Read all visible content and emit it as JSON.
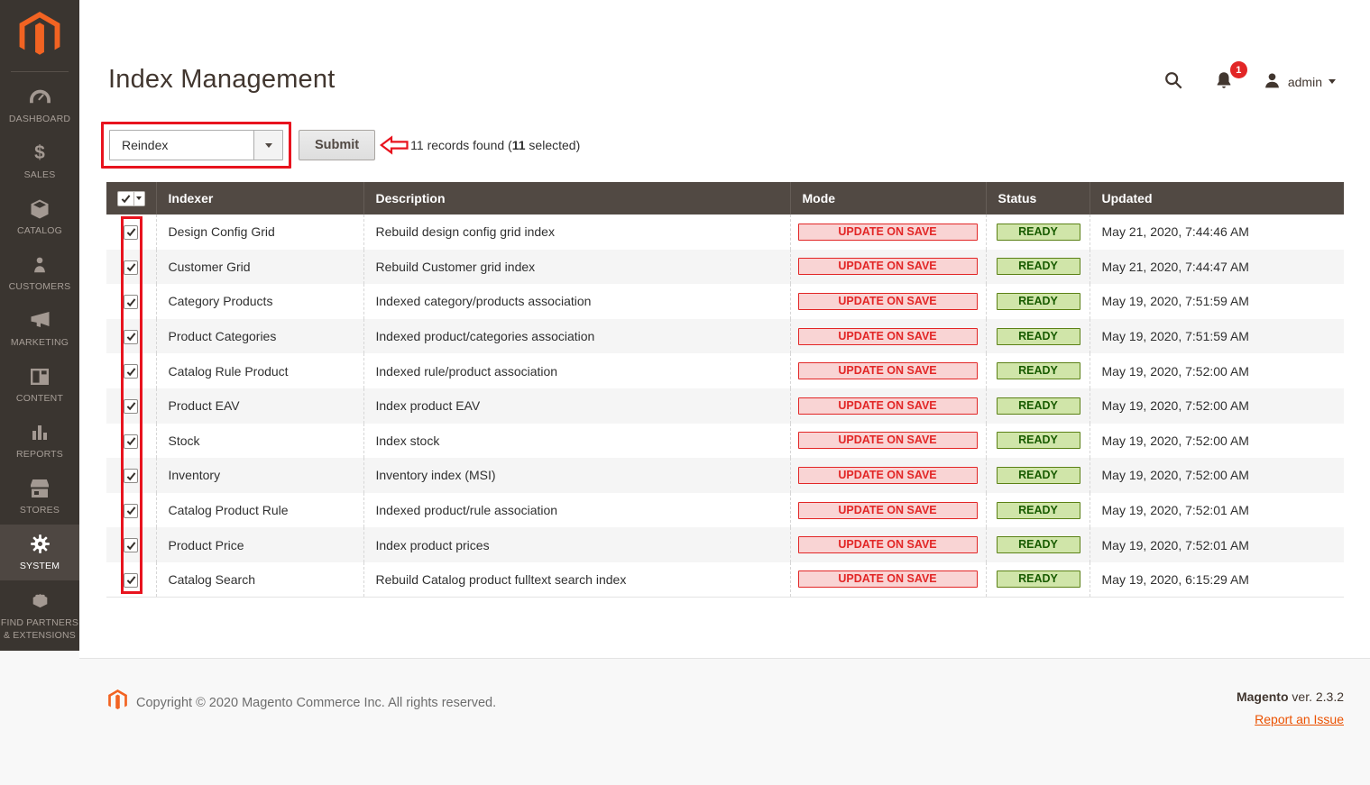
{
  "sidebar": {
    "items": [
      {
        "id": "dashboard",
        "label": "DASHBOARD",
        "icon": "dashboard-icon",
        "active": false
      },
      {
        "id": "sales",
        "label": "SALES",
        "icon": "sales-icon",
        "active": false
      },
      {
        "id": "catalog",
        "label": "CATALOG",
        "icon": "catalog-icon",
        "active": false
      },
      {
        "id": "customers",
        "label": "CUSTOMERS",
        "icon": "customers-icon",
        "active": false
      },
      {
        "id": "marketing",
        "label": "MARKETING",
        "icon": "marketing-icon",
        "active": false
      },
      {
        "id": "content",
        "label": "CONTENT",
        "icon": "content-icon",
        "active": false
      },
      {
        "id": "reports",
        "label": "REPORTS",
        "icon": "reports-icon",
        "active": false
      },
      {
        "id": "stores",
        "label": "STORES",
        "icon": "stores-icon",
        "active": false
      },
      {
        "id": "system",
        "label": "SYSTEM",
        "icon": "system-icon",
        "active": true
      },
      {
        "id": "find-partners",
        "label": "FIND PARTNERS\n& EXTENSIONS",
        "icon": "extensions-icon",
        "active": false
      }
    ]
  },
  "header": {
    "title": "Index Management",
    "username": "admin",
    "notification_count": "1"
  },
  "toolbar": {
    "action_selected": "Reindex",
    "submit_label": "Submit",
    "records_prefix": "11 records found (",
    "records_selected_count": "11",
    "records_suffix": " selected)"
  },
  "table": {
    "columns": {
      "indexer": "Indexer",
      "description": "Description",
      "mode": "Mode",
      "status": "Status",
      "updated": "Updated"
    },
    "rows": [
      {
        "checked": true,
        "indexer": "Design Config Grid",
        "description": "Rebuild design config grid index",
        "mode": "UPDATE ON SAVE",
        "status": "READY",
        "updated": "May 21, 2020, 7:44:46 AM"
      },
      {
        "checked": true,
        "indexer": "Customer Grid",
        "description": "Rebuild Customer grid index",
        "mode": "UPDATE ON SAVE",
        "status": "READY",
        "updated": "May 21, 2020, 7:44:47 AM"
      },
      {
        "checked": true,
        "indexer": "Category Products",
        "description": "Indexed category/products association",
        "mode": "UPDATE ON SAVE",
        "status": "READY",
        "updated": "May 19, 2020, 7:51:59 AM"
      },
      {
        "checked": true,
        "indexer": "Product Categories",
        "description": "Indexed product/categories association",
        "mode": "UPDATE ON SAVE",
        "status": "READY",
        "updated": "May 19, 2020, 7:51:59 AM"
      },
      {
        "checked": true,
        "indexer": "Catalog Rule Product",
        "description": "Indexed rule/product association",
        "mode": "UPDATE ON SAVE",
        "status": "READY",
        "updated": "May 19, 2020, 7:52:00 AM"
      },
      {
        "checked": true,
        "indexer": "Product EAV",
        "description": "Index product EAV",
        "mode": "UPDATE ON SAVE",
        "status": "READY",
        "updated": "May 19, 2020, 7:52:00 AM"
      },
      {
        "checked": true,
        "indexer": "Stock",
        "description": "Index stock",
        "mode": "UPDATE ON SAVE",
        "status": "READY",
        "updated": "May 19, 2020, 7:52:00 AM"
      },
      {
        "checked": true,
        "indexer": "Inventory",
        "description": "Inventory index (MSI)",
        "mode": "UPDATE ON SAVE",
        "status": "READY",
        "updated": "May 19, 2020, 7:52:00 AM"
      },
      {
        "checked": true,
        "indexer": "Catalog Product Rule",
        "description": "Indexed product/rule association",
        "mode": "UPDATE ON SAVE",
        "status": "READY",
        "updated": "May 19, 2020, 7:52:01 AM"
      },
      {
        "checked": true,
        "indexer": "Product Price",
        "description": "Index product prices",
        "mode": "UPDATE ON SAVE",
        "status": "READY",
        "updated": "May 19, 2020, 7:52:01 AM"
      },
      {
        "checked": true,
        "indexer": "Catalog Search",
        "description": "Rebuild Catalog product fulltext search index",
        "mode": "UPDATE ON SAVE",
        "status": "READY",
        "updated": "May 19, 2020, 6:15:29 AM"
      }
    ]
  },
  "footer": {
    "copyright": "Copyright © 2020 Magento Commerce Inc. All rights reserved.",
    "brand": "Magento",
    "version": " ver. 2.3.2",
    "report_link": "Report an Issue"
  },
  "colors": {
    "accent_orange": "#f26322",
    "annotation_red": "#e8131e",
    "mode_badge_bg": "#f9d4d4",
    "mode_badge_border": "#e22626",
    "status_badge_bg": "#d0e5a9",
    "status_badge_border": "#5b8116",
    "status_badge_text": "#185b00",
    "table_header_bg": "#514943",
    "sidebar_bg": "#3a3530"
  }
}
